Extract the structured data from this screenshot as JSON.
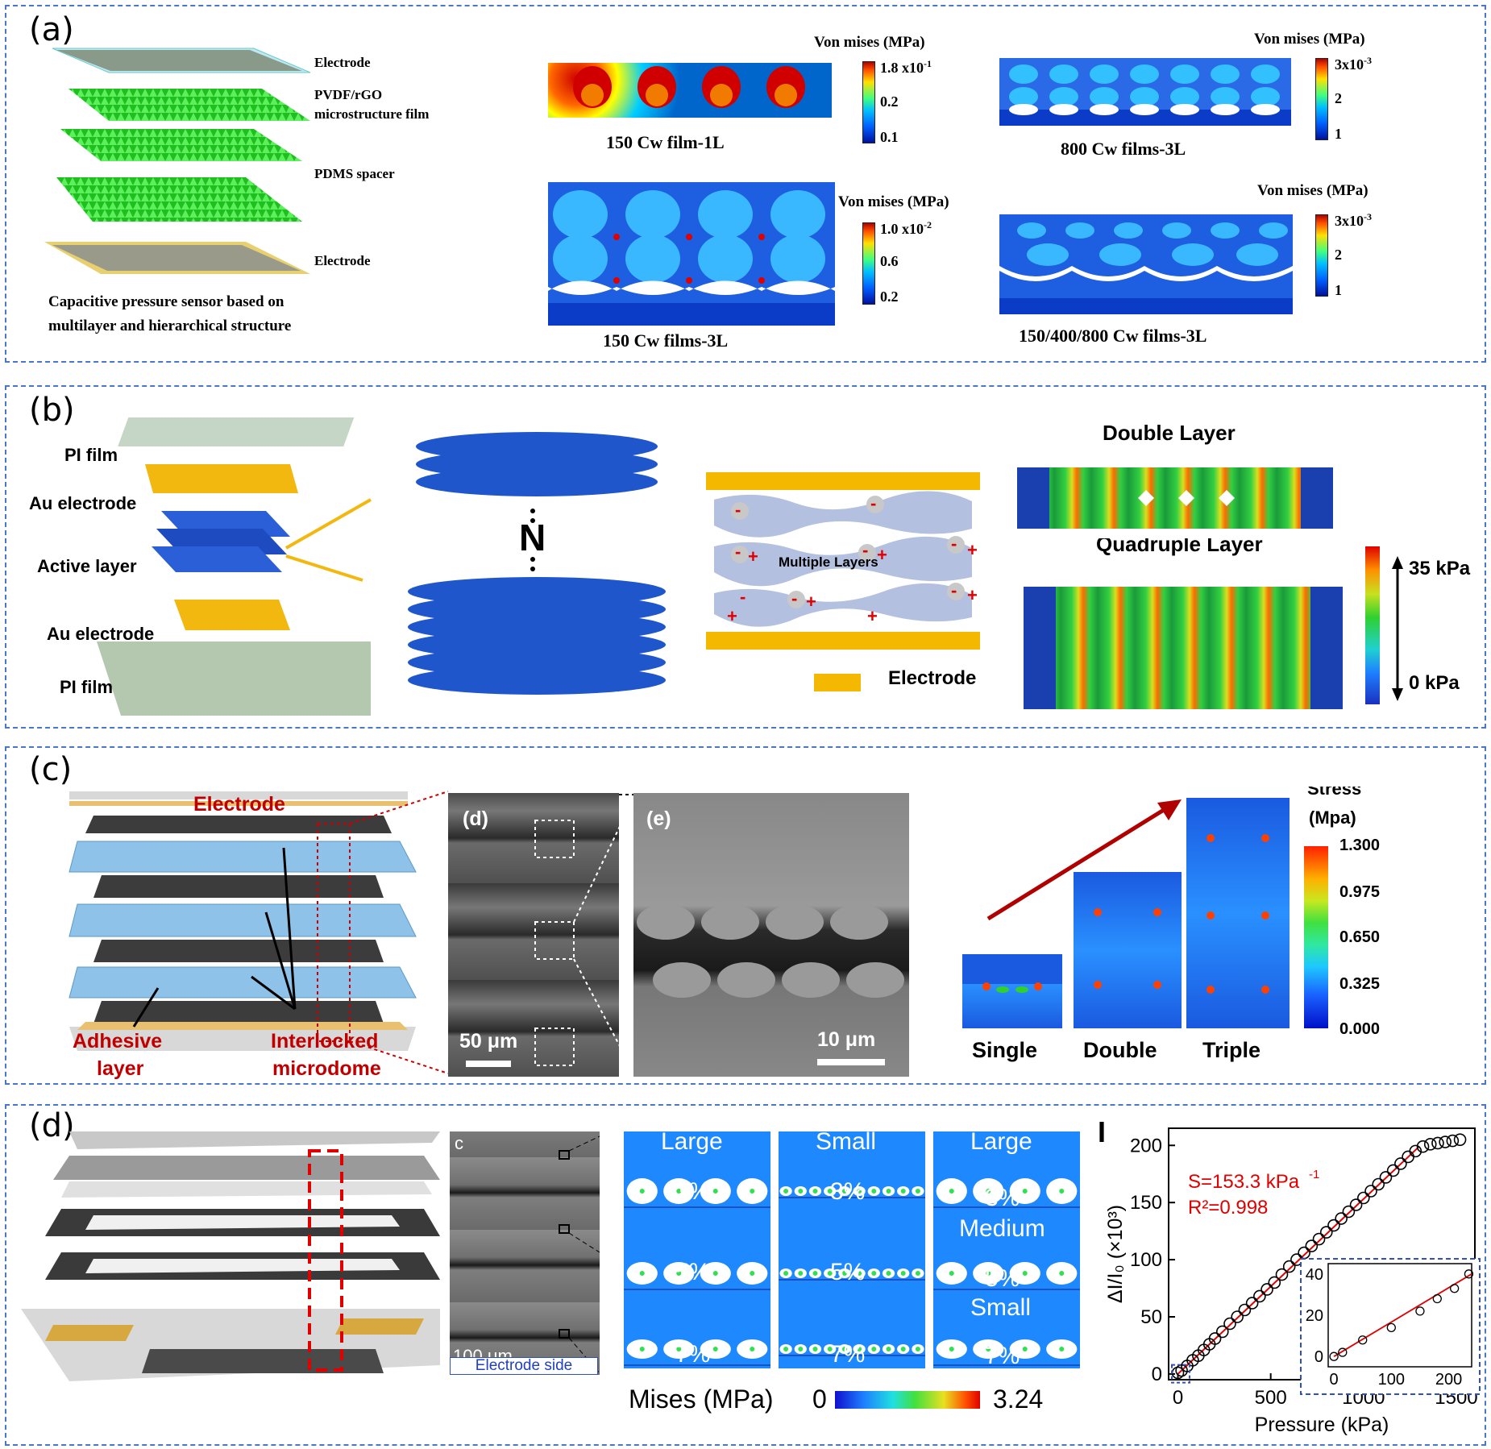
{
  "panels": {
    "a": {
      "label": "(a)",
      "layers": [
        "Electrode",
        "PVDF/rGO",
        "microstructure film",
        "PDMS spacer",
        "Electrode"
      ],
      "caption_line1": "Capacitive pressure sensor based on",
      "caption_line2": "multilayer and hierarchical structure",
      "sims": [
        {
          "title": "Von mises (MPa)",
          "max": "1.8 x10",
          "max_exp": "-1",
          "mid": "0.2",
          "min": "0.1",
          "caption": "150 Cw film-1L"
        },
        {
          "title": "Von mises (MPa)",
          "max": "3x10",
          "max_exp": "-3",
          "mid": "2",
          "min": "1",
          "caption": "800 Cw films-3L"
        },
        {
          "title": "Von mises (MPa)",
          "max": "1.0 x10",
          "max_exp": "-2",
          "mid": "0.6",
          "min": "0.2",
          "caption": "150 Cw films-3L"
        },
        {
          "title": "Von mises (MPa)",
          "max": "3x10",
          "max_exp": "-3",
          "mid": "2",
          "min": "1",
          "caption": "150/400/800 Cw films-3L"
        }
      ]
    },
    "b": {
      "label": "(b)",
      "layers": [
        "PI film",
        "Au electrode",
        "Active layer",
        "Au electrode",
        "PI film"
      ],
      "n_symbol": "N",
      "multiple_layers": "Multiple Layers",
      "electrode_legend": "Electrode",
      "double_layer": "Double Layer",
      "quadruple_layer": "Quadruple Layer",
      "scale_max": "35 kPa",
      "scale_min": "0 kPa"
    },
    "c": {
      "label": "(c)",
      "electrode": "Electrode",
      "adhesive_1": "Adhesive",
      "adhesive_2": "layer",
      "interlocked_1": "Interlocked",
      "interlocked_2": "microdome",
      "sem_d_label": "(d)",
      "sem_d_scale": "50 μm",
      "sem_e_label": "(e)",
      "sem_e_scale": "10 μm",
      "stress_title_1": "Stress",
      "stress_title_2": "(Mpa)",
      "stress_ticks": [
        "1.300",
        "0.975",
        "0.650",
        "0.325",
        "0.000"
      ],
      "stacks": [
        "Single",
        "Double",
        "Triple"
      ]
    },
    "d": {
      "label": "(d)",
      "sem_letter": "c",
      "sem_scale": "100 μm",
      "sem_caption": "Electrode side",
      "columns": [
        {
          "rows": [
            {
              "size": "Large",
              "strain": "3%"
            },
            {
              "size": "",
              "strain": "5%"
            },
            {
              "size": "",
              "strain": "7%"
            }
          ]
        },
        {
          "rows": [
            {
              "size": "Small",
              "strain": "3%"
            },
            {
              "size": "",
              "strain": "5%"
            },
            {
              "size": "",
              "strain": "7%"
            }
          ]
        },
        {
          "rows": [
            {
              "size": "Large",
              "strain": "3%"
            },
            {
              "size": "Medium",
              "strain": "5%"
            },
            {
              "size": "Small",
              "strain": "7%"
            }
          ]
        }
      ],
      "mises_label": "Mises (MPa)",
      "mises_min": "0",
      "mises_max": "3.24",
      "panel_letter": "I"
    }
  },
  "chart_data": {
    "type": "scatter",
    "xlabel": "Pressure (kPa)",
    "ylabel": "ΔI/I₀ (×10³)",
    "xlim": [
      -50,
      1600
    ],
    "ylim": [
      -5,
      215
    ],
    "xticks": [
      "0",
      "500",
      "1000",
      "1500"
    ],
    "yticks": [
      "0",
      "50",
      "100",
      "150",
      "200"
    ],
    "annotation_s": "S=153.3 kPa",
    "annotation_s_exp": "-1",
    "annotation_r": "R²=0.998",
    "fit": {
      "x": [
        0,
        1300
      ],
      "y": [
        0,
        199
      ]
    },
    "series": [
      {
        "x": [
          0,
          20,
          50,
          80,
          110,
          140,
          170,
          200,
          240,
          280,
          320,
          360,
          400,
          440,
          480,
          520,
          560,
          600,
          640,
          680,
          720,
          760,
          800,
          840,
          880,
          920,
          960,
          1000,
          1040,
          1080,
          1120,
          1160,
          1200,
          1240,
          1280,
          1320,
          1360,
          1400,
          1440,
          1480,
          1520
        ],
        "y": [
          1,
          3,
          7,
          12,
          16,
          21,
          26,
          31,
          37,
          44,
          50,
          56,
          62,
          68,
          74,
          80,
          87,
          94,
          100,
          106,
          112,
          118,
          124,
          130,
          136,
          142,
          148,
          154,
          160,
          166,
          172,
          178,
          184,
          190,
          195,
          199,
          201,
          202,
          203,
          204,
          205
        ]
      }
    ],
    "inset": {
      "xticks": [
        "0",
        "100",
        "200"
      ],
      "yticks": [
        "0",
        "20",
        "40"
      ],
      "xlim": [
        -10,
        240
      ],
      "ylim": [
        -5,
        45
      ],
      "x": [
        0,
        15,
        50,
        100,
        150,
        180,
        210,
        235
      ],
      "y": [
        0,
        2,
        8,
        14,
        22,
        28,
        33,
        40
      ],
      "fit": {
        "x": [
          0,
          240
        ],
        "y": [
          0,
          40
        ]
      }
    }
  }
}
